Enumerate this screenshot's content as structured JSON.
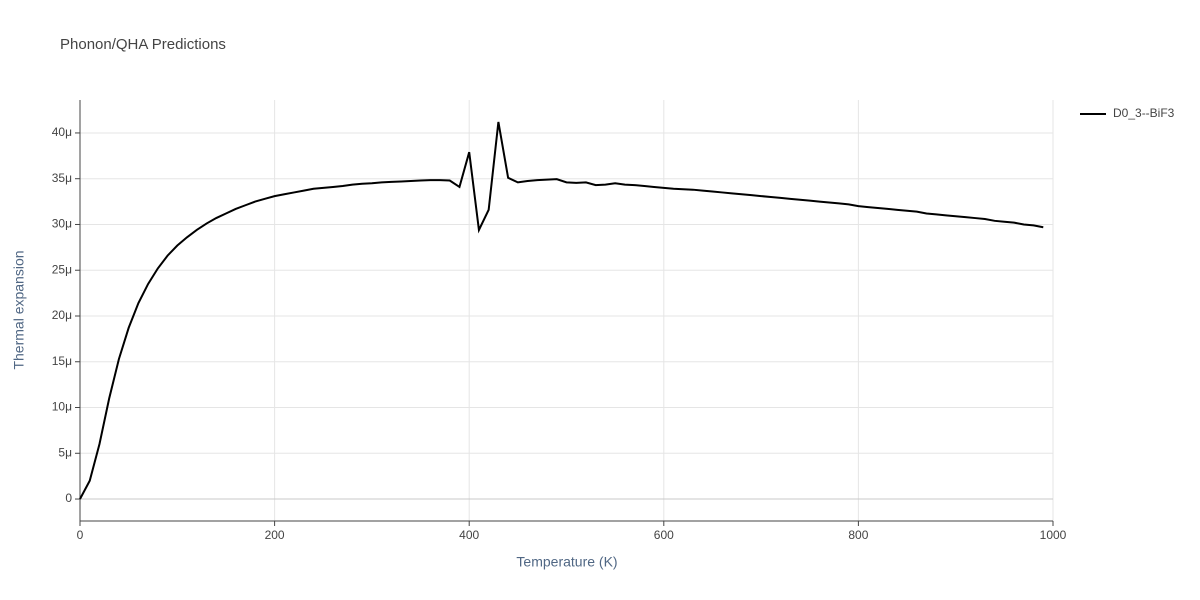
{
  "chart_data": {
    "type": "line",
    "title": "Phonon/QHA Predictions",
    "x_label": "Temperature (K)",
    "y_label": "Thermal expansion",
    "x": [
      0,
      10,
      20,
      30,
      40,
      50,
      60,
      70,
      80,
      90,
      100,
      110,
      120,
      130,
      140,
      150,
      160,
      170,
      180,
      190,
      200,
      210,
      220,
      230,
      240,
      250,
      260,
      270,
      280,
      290,
      300,
      310,
      320,
      330,
      340,
      350,
      360,
      370,
      380,
      390,
      400,
      410,
      420,
      430,
      440,
      450,
      460,
      470,
      480,
      490,
      500,
      510,
      520,
      530,
      540,
      550,
      560,
      570,
      580,
      590,
      600,
      610,
      620,
      630,
      640,
      650,
      660,
      670,
      680,
      690,
      700,
      710,
      720,
      730,
      740,
      750,
      760,
      770,
      780,
      790,
      800,
      810,
      820,
      830,
      840,
      850,
      860,
      870,
      880,
      890,
      900,
      910,
      920,
      930,
      940,
      950,
      960,
      970,
      980,
      990
    ],
    "series": [
      {
        "name": "D0_3--BiF3",
        "color": "#000000",
        "values": [
          0,
          2e-06,
          6e-06,
          1.1e-05,
          1.53e-05,
          1.87e-05,
          2.14e-05,
          2.35e-05,
          2.52e-05,
          2.66e-05,
          2.77e-05,
          2.86e-05,
          2.94e-05,
          3.01e-05,
          3.07e-05,
          3.12e-05,
          3.17e-05,
          3.21e-05,
          3.25e-05,
          3.28e-05,
          3.31e-05,
          3.33e-05,
          3.35e-05,
          3.37e-05,
          3.39e-05,
          3.4e-05,
          3.41e-05,
          3.42e-05,
          3.435e-05,
          3.445e-05,
          3.45e-05,
          3.46e-05,
          3.465e-05,
          3.47e-05,
          3.475e-05,
          3.48e-05,
          3.485e-05,
          3.485e-05,
          3.48e-05,
          3.41e-05,
          3.79e-05,
          2.94e-05,
          3.16e-05,
          4.12e-05,
          3.51e-05,
          3.46e-05,
          3.475e-05,
          3.485e-05,
          3.49e-05,
          3.495e-05,
          3.46e-05,
          3.455e-05,
          3.46e-05,
          3.43e-05,
          3.435e-05,
          3.45e-05,
          3.435e-05,
          3.43e-05,
          3.42e-05,
          3.41e-05,
          3.4e-05,
          3.39e-05,
          3.385e-05,
          3.38e-05,
          3.37e-05,
          3.36e-05,
          3.35e-05,
          3.34e-05,
          3.33e-05,
          3.32e-05,
          3.31e-05,
          3.3e-05,
          3.29e-05,
          3.28e-05,
          3.27e-05,
          3.26e-05,
          3.25e-05,
          3.24e-05,
          3.23e-05,
          3.22e-05,
          3.2e-05,
          3.19e-05,
          3.18e-05,
          3.17e-05,
          3.16e-05,
          3.15e-05,
          3.14e-05,
          3.12e-05,
          3.11e-05,
          3.1e-05,
          3.09e-05,
          3.08e-05,
          3.07e-05,
          3.06e-05,
          3.04e-05,
          3.03e-05,
          3.02e-05,
          3e-05,
          2.99e-05,
          2.97e-05
        ]
      }
    ],
    "xlim": [
      0,
      1000
    ],
    "xticks": [
      0,
      200,
      400,
      600,
      800,
      1000
    ],
    "ylim": [
      -2.4e-06,
      4.36e-05
    ],
    "yticks": [
      0,
      {
        "value": 5e-06,
        "label": "5μ"
      },
      {
        "value": 1e-05,
        "label": "10μ"
      },
      {
        "value": 1.5e-05,
        "label": "15μ"
      },
      {
        "value": 2e-05,
        "label": "20μ"
      },
      {
        "value": 2.5e-05,
        "label": "25μ"
      },
      {
        "value": 3e-05,
        "label": "30μ"
      },
      {
        "value": 3.5e-05,
        "label": "35μ"
      },
      {
        "value": 4e-05,
        "label": "40μ"
      }
    ],
    "grid": true,
    "legend": "top-right"
  }
}
